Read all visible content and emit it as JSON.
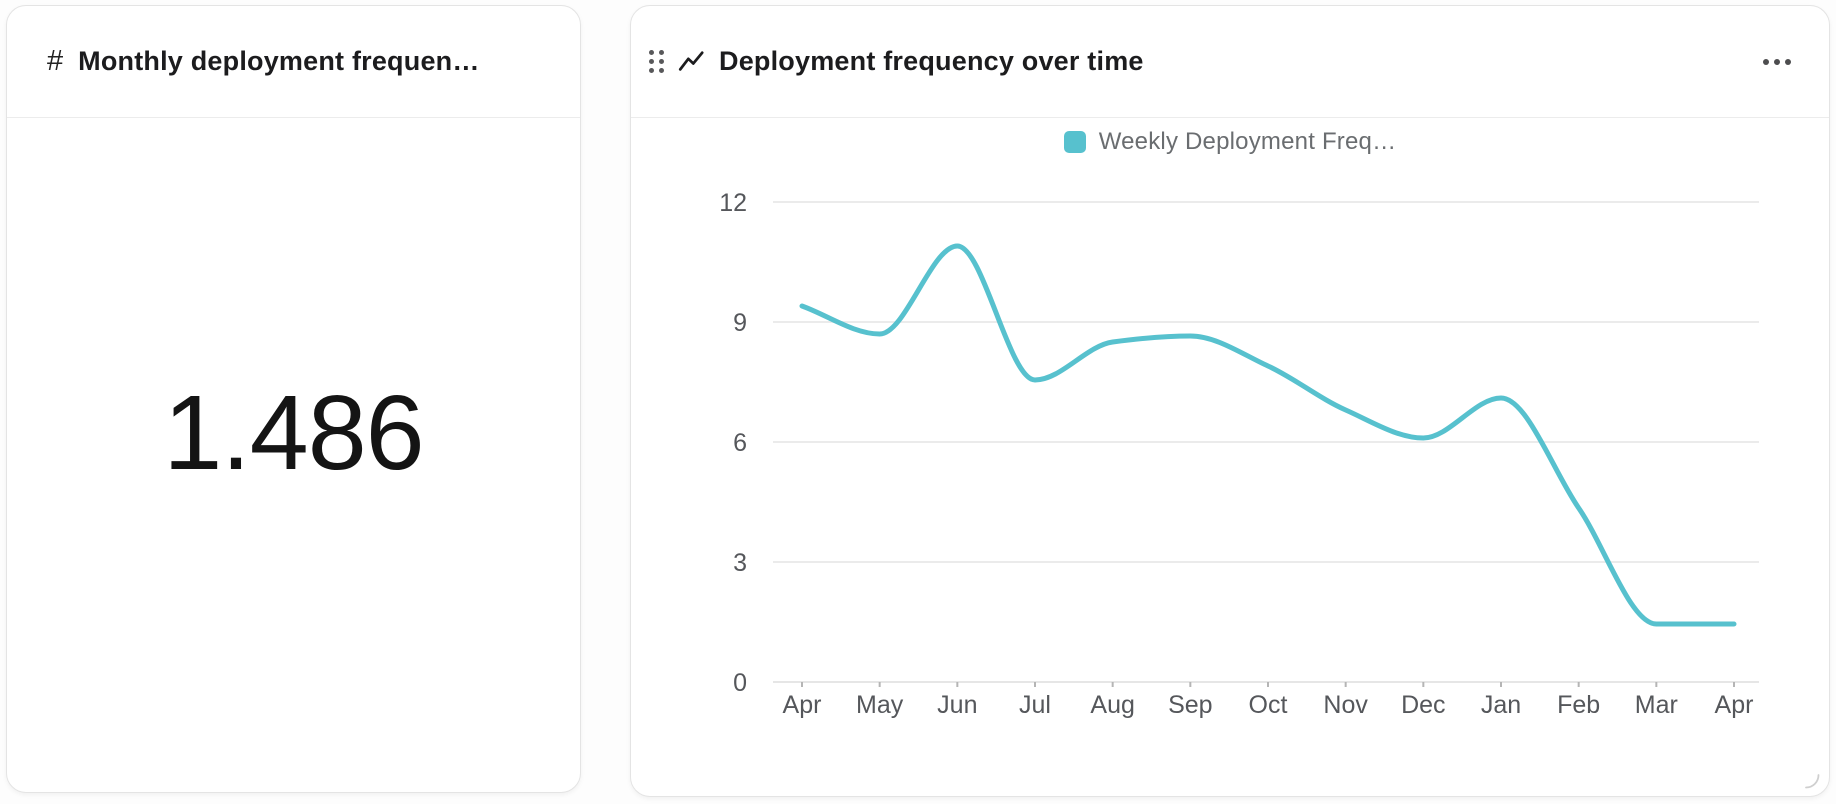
{
  "metric_card": {
    "icon": "#",
    "title": "Monthly deployment frequen…",
    "value": "1.486"
  },
  "chart_card": {
    "title": "Deployment frequency over time",
    "menu_icon": "more-menu-ellipsis",
    "drag_icon": "drag-handle-dots",
    "type_icon": "line-chart-zigzag",
    "resize_icon": "corner-resize-arc"
  },
  "chart_data": {
    "type": "line",
    "title": "Deployment frequency over time",
    "categories": [
      "Apr",
      "May",
      "Jun",
      "Jul",
      "Aug",
      "Sep",
      "Oct",
      "Nov",
      "Dec",
      "Jan",
      "Feb",
      "Mar",
      "Apr"
    ],
    "series": [
      {
        "name": "Weekly Deployment Freq…",
        "color": "#57C1CE",
        "values": [
          9.4,
          8.7,
          10.9,
          7.55,
          8.5,
          8.65,
          7.9,
          6.8,
          6.1,
          7.1,
          4.35,
          1.45,
          1.45
        ]
      }
    ],
    "xlabel": "",
    "ylabel": "",
    "ylim": [
      0,
      12
    ],
    "yticks": [
      0,
      3,
      6,
      9,
      12
    ],
    "grid": "horizontal",
    "legend_position": "top",
    "smooth": true,
    "colors": {
      "grid_line": "#ebebeb",
      "axis_line": "#e6e6e6",
      "tick_mark": "#b5b5b5",
      "axis_label": "#55575b"
    }
  }
}
